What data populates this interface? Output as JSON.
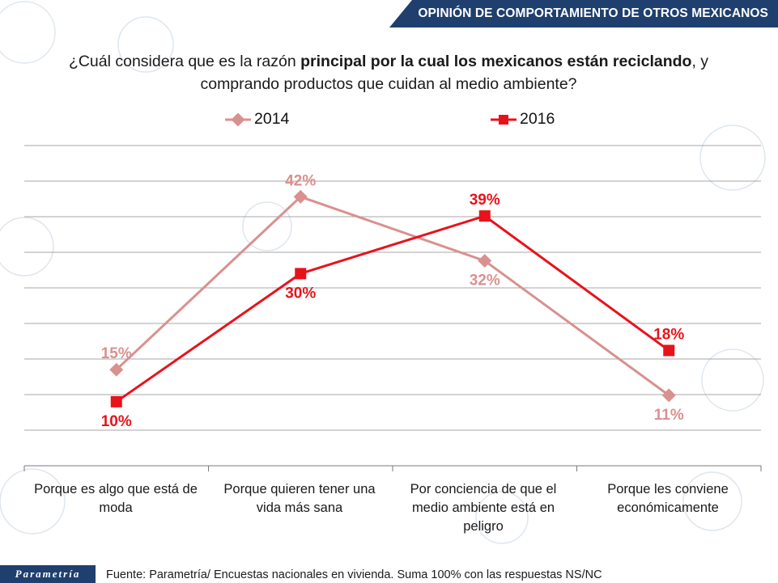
{
  "header": {
    "title": "OPINIÓN DE COMPORTAMIENTO DE OTROS MEXICANOS"
  },
  "question": {
    "part1": "¿Cuál considera que es la razón ",
    "bold": "principal por la cual los mexicanos están reciclando",
    "part2": ", y",
    "line2": "comprando productos que cuidan al medio ambiente?"
  },
  "colors": {
    "series_2014": "#d9918f",
    "series_2016": "#e8121b",
    "header_bg": "#1f3f6e"
  },
  "chart_data": {
    "type": "line",
    "categories": [
      "Porque es algo que está de moda",
      "Porque quieren tener una vida más sana",
      "Por conciencia de que el medio ambiente está en peligro",
      "Porque les conviene económicamente"
    ],
    "series": [
      {
        "name": "2014",
        "values": [
          15,
          42,
          32,
          11
        ],
        "labels": [
          "15%",
          "42%",
          "32%",
          "11%"
        ],
        "marker": "diamond"
      },
      {
        "name": "2016",
        "values": [
          10,
          30,
          39,
          18
        ],
        "labels": [
          "10%",
          "30%",
          "39%",
          "18%"
        ],
        "marker": "square"
      }
    ],
    "ylim": [
      0,
      50
    ],
    "grid": true,
    "legend": "top-center"
  },
  "category_labels": {
    "c0": [
      "Porque es algo que está de",
      "moda"
    ],
    "c1": [
      "Porque quieren tener una",
      "vida más sana"
    ],
    "c2": [
      "Por conciencia de que el",
      "medio ambiente está en",
      "peligro"
    ],
    "c3": [
      "Porque les conviene",
      "económicamente"
    ]
  },
  "footer": {
    "logo": "Parametría",
    "note": "Fuente: Parametría/ Encuestas nacionales en vivienda. Suma 100% con las respuestas NS/NC"
  }
}
